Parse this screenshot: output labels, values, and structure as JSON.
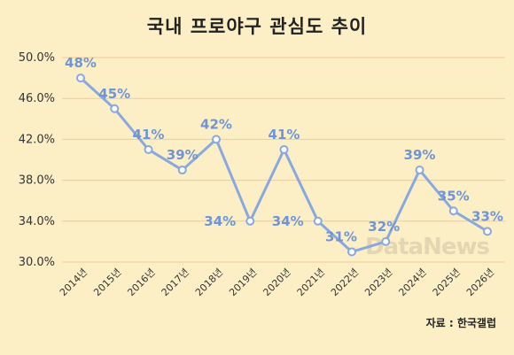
{
  "header": {
    "title": "국내 프로야구 관심도 추이"
  },
  "footer": {
    "source": "자료 : 한국갤럽",
    "watermark": "DataNews"
  },
  "colors": {
    "background": "#fdefc5",
    "line": "#8aa8e0",
    "grid": "#f2c999",
    "label": "#6f95d6"
  },
  "chart_data": {
    "type": "line",
    "title": "국내 프로야구 관심도 추이",
    "categories": [
      "2014년",
      "2015년",
      "2016년",
      "2017년",
      "2018년",
      "2019년",
      "2020년",
      "2021년",
      "2022년",
      "2023년",
      "2024년",
      "2025년",
      "2026년"
    ],
    "series": [
      {
        "values": [
          48,
          45,
          41,
          39,
          42,
          34,
          41,
          34,
          31,
          32,
          39,
          35,
          33
        ]
      }
    ],
    "data_labels": [
      "48%",
      "45%",
      "41%",
      "39%",
      "42%",
      "34%",
      "41%",
      "34%",
      "31%",
      "32%",
      "39%",
      "35%",
      "33%"
    ],
    "yticks": [
      30,
      34,
      38,
      42,
      46,
      50
    ],
    "ytick_labels": [
      "30.0%",
      "34.0%",
      "38.0%",
      "42.0%",
      "46.0%",
      "50.0%"
    ],
    "ylim": [
      30,
      50
    ],
    "grid": true,
    "legend": false
  }
}
